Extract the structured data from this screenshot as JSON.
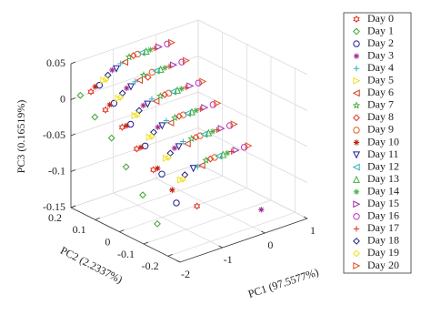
{
  "chart_data": {
    "type": "scatter3d",
    "xlabel": "PC1 (97.5577%)",
    "ylabel": "PC2 (2.2337%)",
    "zlabel": "PC3 (0.16519%)",
    "xlim": [
      -2,
      1
    ],
    "xticks": [
      -2,
      -1,
      0,
      1
    ],
    "ylim": [
      -0.25,
      0.2
    ],
    "yticks": [
      -0.2,
      -0.1,
      0,
      0.1,
      0.2
    ],
    "zlim": [
      -0.15,
      0.05
    ],
    "zticks": [
      -0.15,
      -0.1,
      -0.05,
      0,
      0.05
    ],
    "grid": true,
    "legend": "right",
    "series": [
      {
        "name": "Day 0",
        "color": "#e03020",
        "marker": "hexagram",
        "x": [
          -1.7,
          -1.7,
          -1.65,
          -1.65,
          -1.6,
          -1.2
        ],
        "y": [
          0.17,
          0.11,
          0.05,
          -0.01,
          -0.07,
          -0.18
        ],
        "z": [
          0.01,
          -0.005,
          -0.02,
          -0.04,
          -0.06,
          -0.1
        ]
      },
      {
        "name": "Day 1",
        "color": "#40a030",
        "marker": "diamond",
        "x": [
          -1.95,
          -1.95,
          -1.9,
          -1.9,
          -1.85,
          -1.85
        ],
        "y": [
          0.17,
          0.11,
          0.05,
          -0.01,
          -0.07,
          -0.13
        ],
        "z": [
          0.01,
          -0.01,
          -0.03,
          -0.06,
          -0.09,
          -0.12
        ]
      },
      {
        "name": "Day 2",
        "color": "#202090",
        "marker": "circle",
        "x": [
          -1.5,
          -1.5,
          -1.45,
          -1.45,
          -1.4,
          -1.4
        ],
        "y": [
          0.17,
          0.11,
          0.05,
          -0.01,
          -0.07,
          -0.13
        ],
        "z": [
          0.015,
          0.0,
          -0.02,
          -0.04,
          -0.07,
          -0.1
        ]
      },
      {
        "name": "Day 3",
        "color": "#a03090",
        "marker": "asterisk",
        "x": [
          -1.2,
          -1.2,
          -1.15,
          -1.15,
          -1.1,
          0.2
        ],
        "y": [
          0.17,
          0.11,
          0.05,
          -0.01,
          -0.07,
          -0.2
        ],
        "z": [
          0.03,
          0.015,
          0.0,
          -0.02,
          -0.04,
          -0.13
        ]
      },
      {
        "name": "Day 4",
        "color": "#30b0c0",
        "marker": "plus",
        "x": [
          -1.0,
          -1.0,
          -0.95,
          -0.95,
          -0.9,
          -0.9
        ],
        "y": [
          0.17,
          0.11,
          0.05,
          -0.01,
          -0.07,
          -0.13
        ],
        "z": [
          0.035,
          0.02,
          0.005,
          -0.015,
          -0.035,
          -0.06
        ]
      },
      {
        "name": "Day 5",
        "color": "#f0e020",
        "marker": "triangle-right",
        "x": [
          -1.4,
          -1.4,
          -1.35,
          -1.35,
          -1.3,
          -1.3
        ],
        "y": [
          0.17,
          0.11,
          0.05,
          -0.01,
          -0.07,
          -0.13
        ],
        "z": [
          0.02,
          0.005,
          -0.01,
          -0.03,
          -0.05,
          -0.07
        ]
      },
      {
        "name": "Day 6",
        "color": "#d04020",
        "marker": "triangle-left",
        "x": [
          -0.9,
          -0.9,
          -0.85,
          -0.85,
          -0.8,
          -0.8
        ],
        "y": [
          0.17,
          0.11,
          0.05,
          -0.01,
          -0.07,
          -0.13
        ],
        "z": [
          0.035,
          0.02,
          0.0,
          -0.02,
          -0.04,
          -0.06
        ]
      },
      {
        "name": "Day 7",
        "color": "#40b040",
        "marker": "star",
        "x": [
          -0.8,
          -0.8,
          -0.75,
          -0.75,
          -0.7,
          -0.7
        ],
        "y": [
          0.17,
          0.11,
          0.05,
          -0.01,
          -0.07,
          -0.13
        ],
        "z": [
          0.04,
          0.025,
          0.005,
          -0.015,
          -0.035,
          -0.055
        ]
      },
      {
        "name": "Day 8",
        "color": "#e03020",
        "marker": "diamond",
        "x": [
          -0.7,
          -0.7,
          -0.65,
          -0.65,
          -0.6,
          -0.6
        ],
        "y": [
          0.17,
          0.11,
          0.05,
          -0.01,
          -0.07,
          -0.13
        ],
        "z": [
          0.04,
          0.02,
          0.005,
          -0.015,
          -0.035,
          -0.055
        ]
      },
      {
        "name": "Day 9",
        "color": "#e06020",
        "marker": "circle",
        "x": [
          -0.6,
          -0.6,
          -0.55,
          -0.55,
          -0.5,
          -0.5
        ],
        "y": [
          0.17,
          0.11,
          0.05,
          -0.01,
          -0.07,
          -0.13
        ],
        "z": [
          0.04,
          0.025,
          0.005,
          -0.015,
          -0.035,
          -0.055
        ]
      },
      {
        "name": "Day 10",
        "color": "#c02010",
        "marker": "asterisk",
        "x": [
          -1.6,
          -1.6,
          -1.55,
          -1.55,
          -1.5,
          -1.5
        ],
        "y": [
          0.17,
          0.11,
          0.05,
          -0.01,
          -0.07,
          -0.13
        ],
        "z": [
          0.015,
          0.0,
          -0.02,
          -0.04,
          -0.06,
          -0.08
        ]
      },
      {
        "name": "Day 11",
        "color": "#202090",
        "marker": "triangle-down",
        "x": [
          -1.1,
          -1.1,
          -1.05,
          -1.05,
          -1.0,
          -1.0
        ],
        "y": [
          0.17,
          0.11,
          0.05,
          -0.01,
          -0.07,
          -0.13
        ],
        "z": [
          0.03,
          0.015,
          0.0,
          -0.02,
          -0.04,
          -0.06
        ]
      },
      {
        "name": "Day 12",
        "color": "#30b0c0",
        "marker": "triangle-left",
        "x": [
          -0.5,
          -0.5,
          -0.45,
          -0.45,
          -0.4,
          -0.4
        ],
        "y": [
          0.17,
          0.11,
          0.05,
          -0.01,
          -0.07,
          -0.13
        ],
        "z": [
          0.04,
          0.025,
          0.005,
          -0.015,
          -0.035,
          -0.055
        ]
      },
      {
        "name": "Day 13",
        "color": "#40b040",
        "marker": "triangle-up",
        "x": [
          -0.4,
          -0.4,
          -0.35,
          -0.35,
          -0.3,
          -0.3
        ],
        "y": [
          0.17,
          0.11,
          0.05,
          -0.01,
          -0.07,
          -0.13
        ],
        "z": [
          0.04,
          0.025,
          0.005,
          -0.015,
          -0.035,
          -0.055
        ]
      },
      {
        "name": "Day 14",
        "color": "#50b050",
        "marker": "asterisk",
        "x": [
          -0.3,
          -0.3,
          -0.25,
          -0.25,
          -0.2,
          -0.2
        ],
        "y": [
          0.17,
          0.11,
          0.05,
          -0.01,
          -0.07,
          -0.13
        ],
        "z": [
          0.04,
          0.025,
          0.005,
          -0.015,
          -0.035,
          -0.055
        ]
      },
      {
        "name": "Day 15",
        "color": "#a030a0",
        "marker": "triangle-right",
        "x": [
          -0.1,
          -0.1,
          -0.05,
          -0.05,
          0.0,
          0.0
        ],
        "y": [
          0.17,
          0.11,
          0.05,
          -0.01,
          -0.07,
          -0.13
        ],
        "z": [
          0.04,
          0.025,
          0.005,
          -0.015,
          -0.035,
          -0.055
        ]
      },
      {
        "name": "Day 16",
        "color": "#c030c0",
        "marker": "circle",
        "x": [
          0.1,
          0.1,
          0.15,
          0.15,
          0.2,
          0.2
        ],
        "y": [
          0.17,
          0.11,
          0.05,
          -0.01,
          -0.07,
          -0.13
        ],
        "z": [
          0.04,
          0.025,
          0.005,
          -0.015,
          -0.035,
          -0.055
        ]
      },
      {
        "name": "Day 17",
        "color": "#e03020",
        "marker": "plus",
        "x": [
          -0.2,
          -0.2,
          -0.15,
          -0.15,
          -0.1,
          -0.1
        ],
        "y": [
          0.17,
          0.11,
          0.05,
          -0.01,
          -0.07,
          -0.13
        ],
        "z": [
          0.04,
          0.025,
          0.005,
          -0.015,
          -0.035,
          -0.055
        ]
      },
      {
        "name": "Day 18",
        "color": "#202080",
        "marker": "diamond",
        "x": [
          -1.3,
          -1.3,
          -1.25,
          -1.25,
          -1.2,
          -1.2
        ],
        "y": [
          0.17,
          0.11,
          0.05,
          -0.01,
          -0.07,
          -0.13
        ],
        "z": [
          0.025,
          0.01,
          -0.005,
          -0.025,
          -0.045,
          -0.065
        ]
      },
      {
        "name": "Day 19",
        "color": "#f0e020",
        "marker": "diamond",
        "x": [
          -1.35,
          -1.35,
          -1.3,
          -1.3,
          -1.25,
          -1.25
        ],
        "y": [
          0.17,
          0.11,
          0.05,
          -0.01,
          -0.07,
          -0.13
        ],
        "z": [
          0.02,
          0.005,
          -0.01,
          -0.03,
          -0.05,
          -0.07
        ]
      },
      {
        "name": "Day 20",
        "color": "#e05020",
        "marker": "triangle-right",
        "x": [
          0.2,
          0.2,
          0.25,
          0.25,
          0.3,
          0.3
        ],
        "y": [
          0.17,
          0.11,
          0.05,
          -0.01,
          -0.07,
          -0.13
        ],
        "z": [
          0.04,
          0.025,
          0.005,
          -0.015,
          -0.035,
          -0.055
        ]
      }
    ]
  }
}
